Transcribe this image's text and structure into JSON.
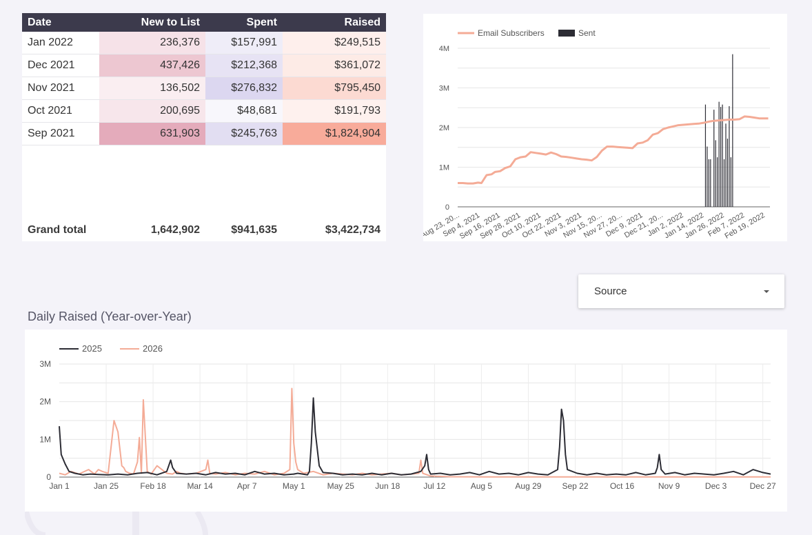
{
  "table": {
    "headers": [
      "Date",
      "New to List",
      "Spent",
      "Raised"
    ],
    "rows": [
      {
        "date": "Jan 2022",
        "new": "236,376",
        "spent": "$157,991",
        "raised": "$249,515",
        "heat": {
          "new": 0.25,
          "spent": 0.22,
          "raised": 0.1
        }
      },
      {
        "date": "Dec 2021",
        "new": "437,426",
        "spent": "$212,368",
        "raised": "$361,072",
        "heat": {
          "new": 0.6,
          "spent": 0.4,
          "raised": 0.16
        }
      },
      {
        "date": "Nov 2021",
        "new": "136,502",
        "spent": "$276,832",
        "raised": "$795,450",
        "heat": {
          "new": 0.1,
          "spent": 0.62,
          "raised": 0.38
        }
      },
      {
        "date": "Oct 2021",
        "new": "200,695",
        "spent": "$48,681",
        "raised": "$191,793",
        "heat": {
          "new": 0.2,
          "spent": 0.04,
          "raised": 0.08
        }
      },
      {
        "date": "Sep 2021",
        "new": "631,903",
        "spent": "$245,763",
        "raised": "$1,824,904",
        "heat": {
          "new": 0.95,
          "spent": 0.5,
          "raised": 1.0
        }
      }
    ],
    "grand_total": {
      "label": "Grand total",
      "new": "1,642,902",
      "spent": "$941,635",
      "raised": "$3,422,734"
    }
  },
  "colors": {
    "header_bg": "#3c3a4c",
    "heat_new": "#d98aa0",
    "heat_spent": "#b8aee0",
    "heat_raised": "#f58f78",
    "salmon": "#f4ab96",
    "dark": "#2c2c34"
  },
  "section_title": "Daily Raised (Year-over-Year)",
  "dropdown": {
    "label": "Source",
    "icon": "caret-down-icon"
  },
  "chart_data": [
    {
      "type": "line",
      "title": "",
      "xlabel": "",
      "ylabel": "",
      "ylim": [
        0,
        4000000
      ],
      "y_ticks": [
        "0",
        "1M",
        "2M",
        "3M",
        "4M"
      ],
      "x_tick_labels": [
        "Aug 23, 20...",
        "Sep 4, 2021",
        "Sep 16, 2021",
        "Sep 28, 2021",
        "Oct 10, 2021",
        "Oct 22, 2021",
        "Nov 3, 2021",
        "Nov 15, 20...",
        "Nov 27, 20...",
        "Dec 9, 2021",
        "Dec 21, 20...",
        "Jan 2, 2022",
        "Jan 14, 2022",
        "Jan 26, 2022",
        "Feb 7, 2022",
        "Feb 19, 2022"
      ],
      "legend": "top-left",
      "series": [
        {
          "name": "Email Subscribers",
          "kind": "line",
          "color": "#f4ab96",
          "day_offsets_from_aug23": [
            0,
            3,
            6,
            9,
            12,
            14,
            17,
            20,
            22,
            25,
            28,
            31,
            34,
            37,
            40,
            43,
            46,
            49,
            52,
            55,
            58,
            61,
            64,
            67,
            70,
            73,
            76,
            79,
            82,
            85,
            88,
            91,
            94,
            97,
            100,
            103,
            106,
            109,
            112,
            115,
            118,
            121,
            124,
            127,
            130,
            133,
            136,
            139,
            142,
            145,
            148,
            151,
            154,
            157,
            160,
            163,
            166,
            169,
            172,
            175,
            178,
            181,
            183
          ],
          "values": [
            600000,
            600000,
            590000,
            590000,
            610000,
            600000,
            800000,
            820000,
            880000,
            900000,
            980000,
            1020000,
            1200000,
            1250000,
            1270000,
            1380000,
            1360000,
            1340000,
            1320000,
            1370000,
            1330000,
            1270000,
            1260000,
            1240000,
            1220000,
            1200000,
            1190000,
            1170000,
            1260000,
            1420000,
            1520000,
            1520000,
            1510000,
            1500000,
            1490000,
            1480000,
            1600000,
            1620000,
            1680000,
            1820000,
            1860000,
            1960000,
            2000000,
            2030000,
            2060000,
            2070000,
            2080000,
            2090000,
            2100000,
            2120000,
            2150000,
            2170000,
            2180000,
            2190000,
            2200000,
            2200000,
            2210000,
            2280000,
            2270000,
            2250000,
            2230000,
            2230000,
            2230000
          ]
        },
        {
          "name": "Sent",
          "kind": "bar",
          "color": "#2c2c34",
          "day_offsets_from_aug23": [
            146,
            147,
            148,
            149,
            151,
            152,
            153,
            154,
            155,
            156,
            157,
            158,
            159,
            160,
            161,
            162,
            163,
            164,
            165
          ],
          "values": [
            2580000,
            1520000,
            1200000,
            1200000,
            2450000,
            1680000,
            1250000,
            2650000,
            2520000,
            2580000,
            1200000,
            2100000,
            1720000,
            2540000,
            1250000,
            3850000,
            0,
            0,
            0
          ]
        }
      ]
    },
    {
      "type": "line",
      "title": "",
      "xlabel": "",
      "ylabel": "",
      "ylim": [
        0,
        3000000
      ],
      "y_ticks": [
        "0",
        "1M",
        "2M",
        "3M"
      ],
      "x_tick_labels": [
        "Jan 1",
        "Jan 25",
        "Feb 18",
        "Mar 14",
        "Apr 7",
        "May 1",
        "May 25",
        "Jun 18",
        "Jul 12",
        "Aug 5",
        "Aug 29",
        "Sep 22",
        "Oct 16",
        "Nov 9",
        "Dec 3",
        "Dec 27"
      ],
      "legend": "top-left",
      "series": [
        {
          "name": "2025",
          "color": "#2c2c34",
          "day": [
            0,
            1,
            3,
            5,
            8,
            12,
            16,
            20,
            25,
            30,
            35,
            40,
            45,
            50,
            55,
            56,
            57,
            58,
            60,
            65,
            70,
            75,
            80,
            85,
            90,
            95,
            100,
            105,
            110,
            115,
            120,
            122,
            127,
            128,
            129,
            130,
            131,
            133,
            135,
            140,
            145,
            150,
            155,
            160,
            165,
            170,
            175,
            180,
            185,
            187,
            188,
            189,
            190,
            195,
            200,
            205,
            210,
            215,
            220,
            225,
            230,
            235,
            240,
            245,
            250,
            255,
            256,
            257,
            258,
            259,
            260,
            265,
            270,
            275,
            280,
            285,
            290,
            295,
            300,
            305,
            306,
            307,
            308,
            310,
            315,
            320,
            325,
            330,
            335,
            340,
            345,
            350,
            355,
            360,
            364
          ],
          "values": [
            1350000,
            600000,
            350000,
            150000,
            100000,
            60000,
            80000,
            70000,
            60000,
            80000,
            60000,
            100000,
            120000,
            60000,
            150000,
            300000,
            450000,
            250000,
            100000,
            80000,
            100000,
            60000,
            120000,
            80000,
            100000,
            60000,
            150000,
            80000,
            100000,
            60000,
            80000,
            100000,
            60000,
            150000,
            900000,
            2100000,
            1200000,
            300000,
            120000,
            100000,
            60000,
            80000,
            60000,
            100000,
            60000,
            100000,
            60000,
            80000,
            150000,
            300000,
            600000,
            200000,
            80000,
            100000,
            60000,
            80000,
            120000,
            60000,
            150000,
            80000,
            100000,
            60000,
            120000,
            80000,
            60000,
            200000,
            800000,
            1800000,
            1500000,
            600000,
            200000,
            100000,
            60000,
            100000,
            60000,
            80000,
            60000,
            120000,
            60000,
            100000,
            250000,
            600000,
            200000,
            80000,
            120000,
            60000,
            100000,
            80000,
            60000,
            100000,
            150000,
            60000,
            200000,
            120000,
            80000
          ]
        },
        {
          "name": "2026",
          "color": "#f4ab96",
          "day": [
            0,
            3,
            6,
            10,
            15,
            18,
            20,
            22,
            25,
            28,
            30,
            32,
            33,
            34,
            36,
            38,
            40,
            41,
            42,
            43,
            45,
            47,
            50,
            55,
            58,
            60,
            62,
            65,
            70,
            75,
            76,
            77,
            80,
            85,
            90,
            95,
            100,
            105,
            110,
            115,
            118,
            119,
            120,
            121,
            122,
            125,
            130,
            135,
            140,
            145,
            150,
            155,
            160,
            165,
            170,
            175,
            180,
            184,
            185,
            186,
            190,
            200,
            220,
            240,
            260,
            280,
            300,
            320,
            340,
            364
          ],
          "values": [
            100000,
            60000,
            150000,
            80000,
            200000,
            80000,
            200000,
            150000,
            100000,
            1500000,
            1200000,
            300000,
            250000,
            150000,
            100000,
            80000,
            400000,
            1050000,
            100000,
            2050000,
            150000,
            80000,
            300000,
            100000,
            80000,
            150000,
            100000,
            80000,
            100000,
            200000,
            450000,
            100000,
            80000,
            120000,
            60000,
            100000,
            80000,
            150000,
            60000,
            100000,
            200000,
            2350000,
            900000,
            400000,
            200000,
            100000,
            150000,
            60000,
            100000,
            80000,
            60000,
            100000,
            60000,
            80000,
            100000,
            60000,
            80000,
            100000,
            450000,
            100000,
            30000,
            10000,
            5000,
            5000,
            5000,
            5000,
            5000,
            5000,
            5000,
            5000
          ]
        }
      ]
    }
  ]
}
